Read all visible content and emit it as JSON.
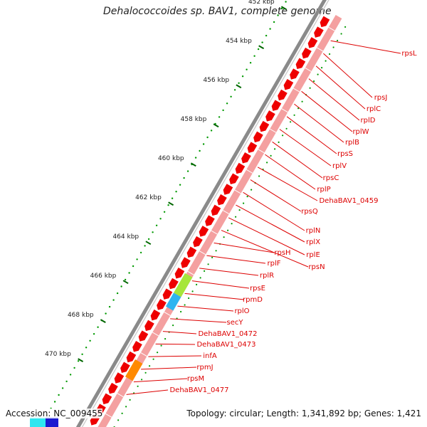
{
  "title": "Dehalococcoides sp. BAV1, complete genome",
  "accession_label": "Accession: NC_009455",
  "summary_label": "Topology: circular; Length: 1,341,892 bp; Genes: 1,421",
  "colors": {
    "backbone": "#8a8a8a",
    "forward_gene": "#ee0000",
    "reverse_track": "#f4a0a0",
    "highlight_green": "#a6e63a",
    "highlight_cyan": "#2fb4f0",
    "highlight_orange": "#ff8a00",
    "tick_major": "#006600",
    "tick_minor": "#009900",
    "label": "#dd0000"
  },
  "axis": {
    "unit": "kbp",
    "ticks": [
      "452 kbp",
      "454 kbp",
      "456 kbp",
      "458 kbp",
      "460 kbp",
      "462 kbp",
      "464 kbp",
      "466 kbp",
      "468 kbp",
      "470 kbp"
    ]
  },
  "genes": [
    "rpsL",
    "rpsJ",
    "rplC",
    "rplD",
    "rplW",
    "rplB",
    "rpsS",
    "rplV",
    "rpsC",
    "rplP",
    "DehaBAV1_0459",
    "rpsQ",
    "rplN",
    "rplX",
    "rplE",
    "rpsN",
    "rpsH",
    "rplF",
    "rplR",
    "rpsE",
    "rpmD",
    "rplO",
    "secY",
    "DehaBAV1_0472",
    "DehaBAV1_0473",
    "infA",
    "rpmJ",
    "rpsM",
    "DehaBAV1_0477"
  ]
}
